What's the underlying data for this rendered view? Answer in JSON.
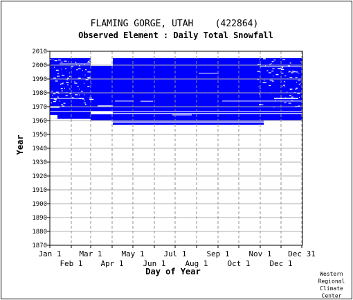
{
  "chart_data": {
    "type": "heatmap",
    "title": "FLAMING GORGE, UTAH    (422864)",
    "subtitle": "Observed Element : Daily Total Snowfall",
    "xlabel": "Day of Year",
    "ylabel": "Year",
    "x_axis": {
      "range_days": [
        1,
        366
      ],
      "top_ticks": [
        {
          "label": "Jan 1",
          "day": 1
        },
        {
          "label": "Mar 1",
          "day": 60
        },
        {
          "label": "May 1",
          "day": 121
        },
        {
          "label": "Jul 1",
          "day": 182
        },
        {
          "label": "Sep 1",
          "day": 244
        },
        {
          "label": "Nov 1",
          "day": 305
        },
        {
          "label": "Dec 31",
          "day": 365
        }
      ],
      "bottom_ticks": [
        {
          "label": "Feb 1",
          "day": 32
        },
        {
          "label": "Apr 1",
          "day": 91
        },
        {
          "label": "Jun 1",
          "day": 152
        },
        {
          "label": "Aug 1",
          "day": 213
        },
        {
          "label": "Oct 1",
          "day": 274
        },
        {
          "label": "Dec 1",
          "day": 335
        }
      ]
    },
    "y_axis": {
      "range": [
        1870,
        2010
      ],
      "ticks": [
        1870,
        1880,
        1890,
        1900,
        1910,
        1920,
        1930,
        1940,
        1950,
        1960,
        1970,
        1980,
        1990,
        2000,
        2010
      ]
    },
    "grid": true,
    "data_color": "#0000ff",
    "blocks": [
      {
        "day_start": 1,
        "day_end": 366,
        "year_start": 1957,
        "year_end": 2005
      }
    ],
    "gaps": [
      {
        "day_start": 1,
        "day_end": 366,
        "year_start": 1966.4,
        "year_end": 1966.9
      },
      {
        "day_start": 60,
        "day_end": 92,
        "year_start": 1964.5,
        "year_end": 1966.4
      },
      {
        "day_start": 92,
        "day_end": 366,
        "year_start": 1964.8,
        "year_end": 1965.4
      },
      {
        "day_start": 1,
        "day_end": 60,
        "year_start": 1957,
        "year_end": 1961.2
      },
      {
        "day_start": 60,
        "day_end": 92,
        "year_start": 1957,
        "year_end": 1960.0
      },
      {
        "day_start": 1,
        "day_end": 12,
        "year_start": 1961.2,
        "year_end": 1964.0
      },
      {
        "day_start": 92,
        "day_end": 366,
        "year_start": 1958.6,
        "year_end": 1959.3
      },
      {
        "day_start": 310,
        "day_end": 366,
        "year_start": 1957,
        "year_end": 1960.3
      },
      {
        "day_start": 1,
        "day_end": 15,
        "year_start": 1969.2,
        "year_end": 1970.4
      },
      {
        "day_start": 70,
        "day_end": 92,
        "year_start": 1970.2,
        "year_end": 1970.9
      },
      {
        "day_start": 178,
        "day_end": 206,
        "year_start": 1963.8,
        "year_end": 1964.3
      },
      {
        "day_start": 216,
        "day_end": 245,
        "year_start": 1994.0,
        "year_end": 1994.4
      },
      {
        "day_start": 95,
        "day_end": 122,
        "year_start": 1973.8,
        "year_end": 1974.3
      },
      {
        "day_start": 132,
        "day_end": 150,
        "year_start": 1973.8,
        "year_end": 1974.2
      },
      {
        "day_start": 250,
        "day_end": 366,
        "year_start": 1973.8,
        "year_end": 1974.3
      },
      {
        "day_start": 305,
        "day_end": 366,
        "year_start": 1998.8,
        "year_end": 1999.3
      },
      {
        "day_start": 15,
        "day_end": 60,
        "year_start": 2000.7,
        "year_end": 2001.2
      },
      {
        "day_start": 325,
        "day_end": 360,
        "year_start": 1975.6,
        "year_end": 1976.4
      },
      {
        "day_start": 1,
        "day_end": 50,
        "year_start": 1975.8,
        "year_end": 1976.2
      },
      {
        "day_start": 1,
        "day_end": 60,
        "year_start": 2005,
        "year_end": 2006.2
      },
      {
        "day_start": 60,
        "day_end": 92,
        "year_start": 2005,
        "year_end": 2005.8
      },
      {
        "day_start": 305,
        "day_end": 366,
        "year_start": 2005,
        "year_end": 2005.8
      },
      {
        "day_start": 60,
        "day_end": 92,
        "year_start": 1999.5,
        "year_end": 2005
      }
    ]
  },
  "credit": [
    "Western",
    "Regional",
    "Climate",
    "Center"
  ]
}
